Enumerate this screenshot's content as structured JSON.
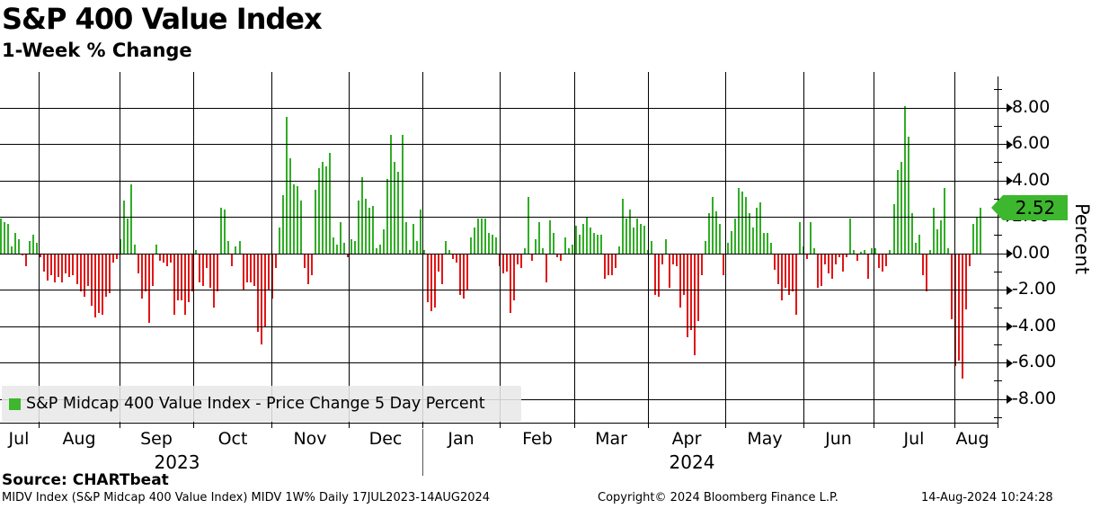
{
  "header": {
    "title": "S&P 400 Value Index",
    "subtitle": "1-Week % Change"
  },
  "legend": {
    "label": "S&P Midcap 400 Value Index - Price Change 5 Day Percent"
  },
  "axis_tag": {
    "value": "2.52"
  },
  "footer": {
    "source": "Source: CHARTbeat",
    "info_left": "MIDV Index (S&P Midcap 400 Value Index) MIDV 1W%  Daily 17JUL2023-14AUG2024",
    "info_center": "Copyright© 2024 Bloomberg Finance L.P.",
    "info_right": "14-Aug-2024 10:24:28"
  },
  "chart_data": {
    "type": "bar",
    "title": "S&P 400 Value Index",
    "subtitle": "1-Week % Change",
    "series_name": "S&P Midcap 400 Value Index - Price Change 5 Day Percent",
    "ylabel": "Percent",
    "ylim": [
      -9.5,
      9.6
    ],
    "grid": true,
    "y_tick_labels": [
      "8.00",
      "6.00",
      "4.00",
      "2.00",
      "0.00",
      "-2.00",
      "-4.00",
      "-6.00",
      "-8.00"
    ],
    "y_tick_values": [
      8,
      6,
      4,
      2,
      0,
      -2,
      -4,
      -6,
      -8
    ],
    "x_months": [
      "Jul",
      "Aug",
      "Sep",
      "Oct",
      "Nov",
      "Dec",
      "Jan",
      "Feb",
      "Mar",
      "Apr",
      "May",
      "Jun",
      "Jul",
      "Aug"
    ],
    "x_years": [
      "2023",
      "2024"
    ],
    "date_range": "17JUL2023-14AUG2024",
    "last_value": 2.52,
    "positive_color": "#31ad26",
    "negative_color": "#e11616",
    "tag_color": "#3cb72e",
    "values": [
      1.9,
      1.7,
      1.6,
      0.4,
      1.1,
      0.8,
      -0.1,
      -0.7,
      0.7,
      1.0,
      0.6,
      -0.2,
      -1.0,
      -1.5,
      -1.2,
      -1.6,
      -1.3,
      -1.6,
      -1.1,
      -1.3,
      -1.2,
      -1.7,
      -2.1,
      -2.4,
      -1.8,
      -2.9,
      -3.5,
      -3.3,
      -3.4,
      -2.4,
      -2.2,
      -0.5,
      -0.3,
      0.8,
      2.9,
      1.9,
      3.8,
      0.5,
      -1.1,
      -2.5,
      -2.1,
      -3.8,
      -1.8,
      0.5,
      -0.4,
      -0.5,
      -0.7,
      -0.5,
      -3.4,
      -2.6,
      -2.6,
      -3.4,
      -2.7,
      -2.1,
      0.2,
      -1.6,
      -1.8,
      -0.8,
      -1.9,
      -3.0,
      -2.1,
      2.5,
      2.4,
      0.7,
      -0.7,
      0.4,
      0.7,
      -2.0,
      -1.6,
      -1.6,
      -1.8,
      -4.3,
      -5.0,
      -4.0,
      -2.0,
      -2.5,
      -0.8,
      1.4,
      3.2,
      7.5,
      5.2,
      3.8,
      3.7,
      2.9,
      -0.8,
      -1.7,
      -1.2,
      3.5,
      4.7,
      5.0,
      4.8,
      5.5,
      0.9,
      0.5,
      1.7,
      0.6,
      -0.2,
      0.8,
      0.7,
      2.9,
      4.2,
      3.0,
      2.5,
      2.6,
      0.3,
      0.5,
      1.3,
      4.1,
      6.5,
      5.0,
      4.5,
      6.5,
      1.7,
      0.2,
      1.6,
      0.7,
      2.4,
      0.2,
      -2.7,
      -3.2,
      -3.0,
      -1.0,
      -1.7,
      0.7,
      0.2,
      -0.3,
      -0.5,
      -2.3,
      -2.5,
      -2.0,
      0.9,
      1.4,
      1.9,
      1.9,
      1.9,
      1.1,
      1.0,
      0.9,
      -0.7,
      -1.1,
      -1.0,
      -3.3,
      -2.6,
      -0.6,
      -0.8,
      0.3,
      3.1,
      -0.4,
      0.8,
      1.7,
      0.3,
      -1.6,
      1.8,
      1.1,
      -0.2,
      -0.4,
      0.9,
      0.3,
      0.5,
      1.5,
      1.0,
      1.6,
      2.0,
      1.4,
      1.1,
      1.0,
      1.0,
      -1.4,
      -1.2,
      -1.2,
      -0.8,
      0.4,
      3.0,
      1.9,
      2.4,
      1.4,
      1.9,
      1.6,
      1.5,
      0.2,
      0.7,
      -2.3,
      -2.4,
      -0.6,
      0.8,
      -1.9,
      -0.6,
      -0.7,
      -3.0,
      -2.3,
      -4.6,
      -4.2,
      -5.6,
      -3.7,
      -1.2,
      0.7,
      2.2,
      3.1,
      2.3,
      1.6,
      -1.2,
      0.6,
      1.2,
      1.9,
      3.6,
      3.4,
      3.1,
      2.2,
      1.4,
      2.5,
      2.8,
      1.1,
      1.1,
      0.6,
      -0.9,
      -1.7,
      -2.6,
      -1.9,
      -2.3,
      -2.1,
      -3.4,
      1.7,
      0.4,
      -0.3,
      1.7,
      0.3,
      -1.9,
      -1.8,
      -0.6,
      -1.1,
      -1.4,
      -0.6,
      -0.2,
      -1.0,
      -0.2,
      1.9,
      0.2,
      -0.4,
      0.1,
      0.2,
      -1.4,
      0.3,
      0.3,
      -0.8,
      -1.0,
      -0.7,
      0.2,
      2.7,
      4.6,
      5.0,
      8.1,
      6.4,
      2.2,
      0.6,
      1.0,
      -1.2,
      -2.1,
      0.2,
      2.5,
      1.3,
      1.8,
      3.6,
      0.3,
      -3.6,
      -6.2,
      -5.9,
      -6.9,
      -3.1,
      -0.7,
      1.6,
      2.0,
      2.52
    ]
  }
}
